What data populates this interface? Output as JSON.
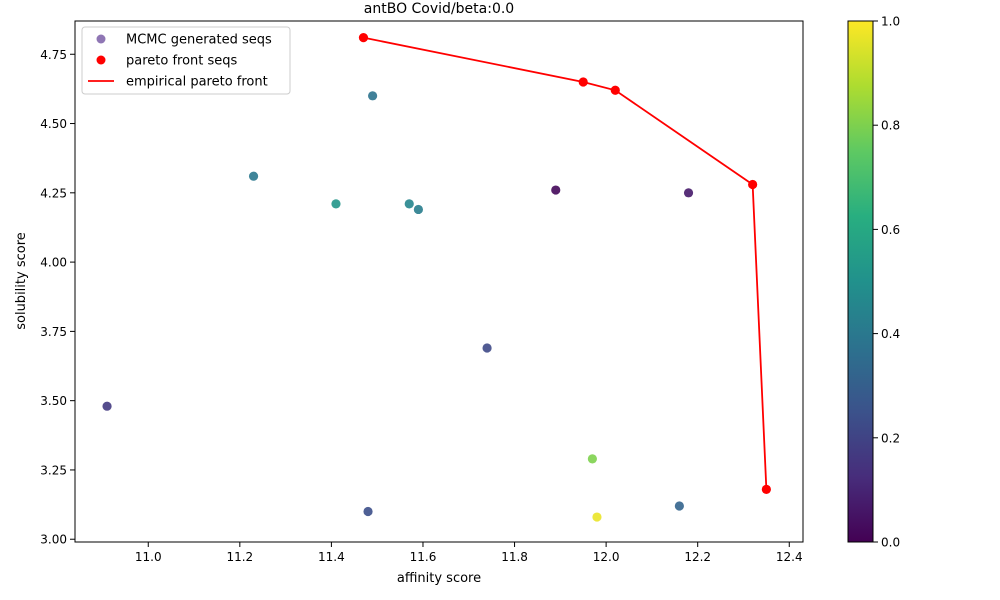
{
  "chart_data": {
    "type": "scatter",
    "title": "antBO Covid/beta:0.0",
    "xlabel": "affinity score",
    "ylabel": "solubility score",
    "xlim": [
      10.84,
      12.43
    ],
    "ylim": [
      2.99,
      4.87
    ],
    "x_ticks": [
      "11.0",
      "11.2",
      "11.4",
      "11.6",
      "11.8",
      "12.0",
      "12.2",
      "12.4"
    ],
    "y_ticks": [
      "3.00",
      "3.25",
      "3.50",
      "3.75",
      "4.00",
      "4.25",
      "4.50",
      "4.75"
    ],
    "legend_position": "top-left",
    "legend": [
      {
        "label": "MCMC generated seqs",
        "marker": "circle",
        "color": "#7b5ea7"
      },
      {
        "label": "pareto front seqs",
        "marker": "circle",
        "color": "#ff0000"
      },
      {
        "label": "empirical pareto front",
        "marker": "line",
        "color": "#ff0000"
      }
    ],
    "series": [
      {
        "name": "MCMC generated seqs",
        "kind": "scatter",
        "colormap": "viridis",
        "points": [
          {
            "x": 10.91,
            "y": 3.48,
            "c": 0.17
          },
          {
            "x": 11.23,
            "y": 4.31,
            "c": 0.4
          },
          {
            "x": 11.41,
            "y": 4.21,
            "c": 0.52
          },
          {
            "x": 11.48,
            "y": 3.1,
            "c": 0.24
          },
          {
            "x": 11.49,
            "y": 4.6,
            "c": 0.38
          },
          {
            "x": 11.57,
            "y": 4.21,
            "c": 0.45
          },
          {
            "x": 11.59,
            "y": 4.19,
            "c": 0.42
          },
          {
            "x": 11.74,
            "y": 3.69,
            "c": 0.22
          },
          {
            "x": 11.89,
            "y": 4.26,
            "c": 0.02
          },
          {
            "x": 11.97,
            "y": 3.29,
            "c": 0.8
          },
          {
            "x": 11.98,
            "y": 3.08,
            "c": 0.97
          },
          {
            "x": 12.16,
            "y": 3.12,
            "c": 0.32
          },
          {
            "x": 12.18,
            "y": 4.25,
            "c": 0.07
          }
        ]
      },
      {
        "name": "pareto front seqs",
        "kind": "scatter",
        "color": "#ff0000",
        "points": [
          {
            "x": 11.47,
            "y": 4.81
          },
          {
            "x": 11.95,
            "y": 4.65
          },
          {
            "x": 12.02,
            "y": 4.62
          },
          {
            "x": 12.32,
            "y": 4.28
          },
          {
            "x": 12.35,
            "y": 3.18
          }
        ]
      },
      {
        "name": "empirical pareto front",
        "kind": "line",
        "color": "#ff0000",
        "points": [
          {
            "x": 11.47,
            "y": 4.81
          },
          {
            "x": 11.95,
            "y": 4.65
          },
          {
            "x": 12.02,
            "y": 4.62
          },
          {
            "x": 12.32,
            "y": 4.28
          },
          {
            "x": 12.35,
            "y": 3.18
          }
        ]
      }
    ],
    "colorbar": {
      "colormap": "viridis",
      "range": [
        0.0,
        1.0
      ],
      "ticks": [
        "0.0",
        "0.2",
        "0.4",
        "0.6",
        "0.8",
        "1.0"
      ]
    }
  }
}
